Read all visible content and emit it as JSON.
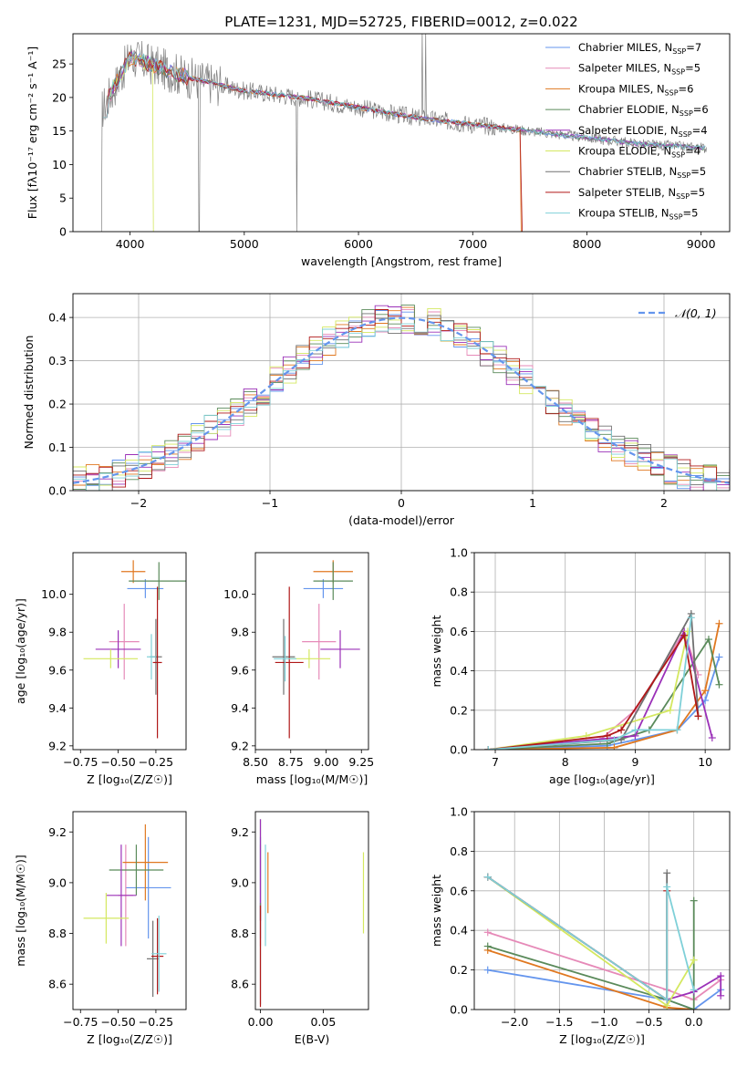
{
  "title": "PLATE=1231, MJD=52725, FIBERID=0012, z=0.022",
  "colors": {
    "Chabrier MILES": "#6495ed",
    "Salpeter MILES": "#e68ab8",
    "Kroupa MILES": "#e07820",
    "Chabrier ELODIE": "#5a8a5a",
    "Salpeter ELODIE": "#9b30b8",
    "Kroupa ELODIE": "#d4e860",
    "Chabrier STELIB": "#707070",
    "Salpeter STELIB": "#b01818",
    "Kroupa STELIB": "#7fd0d8",
    "normal": "#6495ed",
    "grid": "#b0b0b0"
  },
  "chart_data": [
    {
      "id": "spectrum",
      "type": "line",
      "xlabel": "wavelength [Angstrom, rest frame]",
      "ylabel": "Flux [fλ10⁻¹⁷ erg cm⁻² s⁻¹ A⁻¹]",
      "xlim": [
        3500,
        9250
      ],
      "ylim": [
        0,
        29.5
      ],
      "xticks": [
        "4000",
        "5000",
        "6000",
        "7000",
        "8000",
        "9000"
      ],
      "yticks": [
        "0",
        "5",
        "10",
        "15",
        "20",
        "25"
      ],
      "legend_position": "upper-right",
      "legend": [
        {
          "name": "Chabrier MILES",
          "nssp": "7"
        },
        {
          "name": "Salpeter MILES",
          "nssp": "5"
        },
        {
          "name": "Kroupa MILES",
          "nssp": "6"
        },
        {
          "name": "Chabrier ELODIE",
          "nssp": "6"
        },
        {
          "name": "Salpeter ELODIE",
          "nssp": "4"
        },
        {
          "name": "Kroupa ELODIE",
          "nssp": "4"
        },
        {
          "name": "Chabrier STELIB",
          "nssp": "5"
        },
        {
          "name": "Salpeter STELIB",
          "nssp": "5"
        },
        {
          "name": "Kroupa STELIB",
          "nssp": "5"
        }
      ],
      "data_trend": {
        "x": [
          3750,
          4000,
          4500,
          5000,
          5500,
          6000,
          6500,
          7000,
          7500,
          8000,
          8500,
          9000
        ],
        "y": [
          18,
          26,
          23,
          21,
          20,
          18.5,
          17,
          16,
          15,
          14,
          13,
          12.5
        ]
      }
    },
    {
      "id": "residuals",
      "type": "line",
      "xlabel": "(data-model)/error",
      "ylabel": "Normed distribution",
      "xlim": [
        -2.5,
        2.5
      ],
      "ylim": [
        0,
        0.455
      ],
      "xticks": [
        "−2",
        "−1",
        "0",
        "1",
        "2"
      ],
      "yticks": [
        "0.0",
        "0.1",
        "0.2",
        "0.3",
        "0.4"
      ],
      "grid": true,
      "legend_position": "upper-right",
      "legend": "𝒩(0, 1)",
      "series": [
        {
          "name": "𝒩(0, 1)",
          "mean": 0,
          "sigma": 1
        }
      ]
    },
    {
      "id": "age_vs_Z",
      "type": "scatter",
      "xlabel": "Z [log₁₀(Z/Z☉)]",
      "ylabel": "age  [log₁₀(age/yr)]",
      "xlim": [
        -0.8,
        -0.05
      ],
      "ylim": [
        9.18,
        10.22
      ],
      "xticks": [
        "−0.75",
        "−0.50",
        "−0.25"
      ],
      "yticks": [
        "9.2",
        "9.4",
        "9.6",
        "9.8",
        "10.0"
      ],
      "points": [
        {
          "series": "Chabrier MILES",
          "x": -0.32,
          "y": 10.03
        },
        {
          "series": "Salpeter MILES",
          "x": -0.46,
          "y": 9.75
        },
        {
          "series": "Kroupa MILES",
          "x": -0.4,
          "y": 10.12
        },
        {
          "series": "Chabrier ELODIE",
          "x": -0.23,
          "y": 10.07
        },
        {
          "series": "Salpeter ELODIE",
          "x": -0.5,
          "y": 9.71
        },
        {
          "series": "Kroupa ELODIE",
          "x": -0.55,
          "y": 9.66
        },
        {
          "series": "Chabrier STELIB",
          "x": -0.25,
          "y": 9.67
        },
        {
          "series": "Salpeter STELIB",
          "x": -0.24,
          "y": 9.64
        },
        {
          "series": "Kroupa STELIB",
          "x": -0.28,
          "y": 9.67
        }
      ]
    },
    {
      "id": "age_vs_mass",
      "type": "scatter",
      "xlabel": "mass [log₁₀(M/M☉)]",
      "xlim": [
        8.5,
        9.3
      ],
      "ylim": [
        9.18,
        10.22
      ],
      "xticks": [
        "8.50",
        "8.75",
        "9.00",
        "9.25"
      ],
      "yticks": [
        "9.2",
        "9.4",
        "9.6",
        "9.8",
        "10.0"
      ],
      "points": [
        {
          "series": "Chabrier MILES",
          "x": 8.98,
          "y": 10.03
        },
        {
          "series": "Salpeter MILES",
          "x": 8.95,
          "y": 9.75
        },
        {
          "series": "Kroupa MILES",
          "x": 9.05,
          "y": 10.12
        },
        {
          "series": "Chabrier ELODIE",
          "x": 9.05,
          "y": 10.07
        },
        {
          "series": "Salpeter ELODIE",
          "x": 9.1,
          "y": 9.71
        },
        {
          "series": "Kroupa ELODIE",
          "x": 8.88,
          "y": 9.66
        },
        {
          "series": "Chabrier STELIB",
          "x": 8.7,
          "y": 9.67
        },
        {
          "series": "Salpeter STELIB",
          "x": 8.74,
          "y": 9.64
        },
        {
          "series": "Kroupa STELIB",
          "x": 8.71,
          "y": 9.66
        }
      ]
    },
    {
      "id": "weight_vs_age",
      "type": "line",
      "xlabel": "age  [log₁₀(age/yr)]",
      "ylabel": "mass weight",
      "xlim": [
        6.7,
        10.35
      ],
      "ylim": [
        0,
        1.0
      ],
      "xticks": [
        "7",
        "8",
        "9",
        "10"
      ],
      "yticks": [
        "0.0",
        "0.2",
        "0.4",
        "0.6",
        "0.8",
        "1.0"
      ],
      "grid": true,
      "series": [
        {
          "name": "Chabrier MILES",
          "x": [
            6.9,
            8.6,
            9.0,
            9.6,
            10.0,
            10.2
          ],
          "y": [
            0.0,
            0.02,
            0.05,
            0.1,
            0.25,
            0.47
          ]
        },
        {
          "name": "Salpeter MILES",
          "x": [
            6.9,
            8.5,
            9.0,
            9.7,
            9.9
          ],
          "y": [
            0.0,
            0.05,
            0.2,
            0.6,
            0.38
          ]
        },
        {
          "name": "Kroupa MILES",
          "x": [
            6.9,
            8.7,
            9.6,
            10.0,
            10.2
          ],
          "y": [
            0.0,
            0.01,
            0.1,
            0.3,
            0.64
          ]
        },
        {
          "name": "Chabrier ELODIE",
          "x": [
            6.9,
            8.6,
            9.2,
            10.05,
            10.2
          ],
          "y": [
            0.0,
            0.03,
            0.1,
            0.56,
            0.33
          ]
        },
        {
          "name": "Salpeter ELODIE",
          "x": [
            6.9,
            9.0,
            9.7,
            10.1
          ],
          "y": [
            0.0,
            0.07,
            0.6,
            0.06
          ]
        },
        {
          "name": "Kroupa ELODIE",
          "x": [
            6.9,
            8.3,
            9.5,
            9.75
          ],
          "y": [
            0.0,
            0.07,
            0.2,
            0.6
          ]
        },
        {
          "name": "Chabrier STELIB",
          "x": [
            6.9,
            8.8,
            9.8,
            9.9
          ],
          "y": [
            0.0,
            0.05,
            0.69,
            0.17
          ]
        },
        {
          "name": "Salpeter STELIB",
          "x": [
            6.9,
            8.6,
            8.8,
            9.7,
            9.9
          ],
          "y": [
            0.0,
            0.07,
            0.1,
            0.58,
            0.17
          ]
        },
        {
          "name": "Kroupa STELIB",
          "x": [
            6.9,
            8.7,
            9.0,
            9.6,
            9.8
          ],
          "y": [
            0.0,
            0.05,
            0.1,
            0.1,
            0.67
          ]
        }
      ]
    },
    {
      "id": "mass_vs_Z",
      "type": "scatter",
      "xlabel": "Z [log₁₀(Z/Z☉)]",
      "ylabel": "mass [log₁₀(M/M☉)]",
      "xlim": [
        -0.8,
        -0.05
      ],
      "ylim": [
        8.5,
        9.28
      ],
      "xticks": [
        "−0.75",
        "−0.50",
        "−0.25"
      ],
      "yticks": [
        "8.6",
        "8.8",
        "9.0",
        "9.2"
      ],
      "points": [
        {
          "series": "Chabrier MILES",
          "x": -0.3,
          "y": 8.98
        },
        {
          "series": "Salpeter MILES",
          "x": -0.45,
          "y": 8.95
        },
        {
          "series": "Kroupa MILES",
          "x": -0.32,
          "y": 9.08
        },
        {
          "series": "Chabrier ELODIE",
          "x": -0.38,
          "y": 9.05
        },
        {
          "series": "Salpeter ELODIE",
          "x": -0.48,
          "y": 8.95
        },
        {
          "series": "Kroupa ELODIE",
          "x": -0.58,
          "y": 8.86
        },
        {
          "series": "Chabrier STELIB",
          "x": -0.27,
          "y": 8.7
        },
        {
          "series": "Salpeter STELIB",
          "x": -0.24,
          "y": 8.71
        },
        {
          "series": "Kroupa STELIB",
          "x": -0.23,
          "y": 8.72
        }
      ]
    },
    {
      "id": "mass_vs_ebv",
      "type": "scatter",
      "xlabel": "E(B-V)",
      "xlim": [
        -0.004,
        0.086
      ],
      "ylim": [
        8.5,
        9.28
      ],
      "xticks": [
        "0.00",
        "0.05"
      ],
      "yticks": [
        "8.6",
        "8.8",
        "9.0",
        "9.2"
      ],
      "points": [
        {
          "series": "Chabrier MILES",
          "x": 0.0,
          "y": 8.98
        },
        {
          "series": "Salpeter MILES",
          "x": 0.0,
          "y": 8.95
        },
        {
          "series": "Kroupa MILES",
          "x": 0.006,
          "y": 9.0
        },
        {
          "series": "Chabrier ELODIE",
          "x": 0.0,
          "y": 9.05
        },
        {
          "series": "Salpeter ELODIE",
          "x": 0.0,
          "y": 9.05
        },
        {
          "series": "Kroupa ELODIE",
          "x": 0.082,
          "y": 8.96
        },
        {
          "series": "Chabrier STELIB",
          "x": 0.0,
          "y": 8.72
        },
        {
          "series": "Salpeter STELIB",
          "x": 0.0,
          "y": 8.71
        },
        {
          "series": "Kroupa STELIB",
          "x": 0.004,
          "y": 8.95
        }
      ]
    },
    {
      "id": "weight_vs_Z",
      "type": "line",
      "xlabel": "Z [log₁₀(Z/Z☉)]",
      "ylabel": "mass weight",
      "xlim": [
        -2.45,
        0.4
      ],
      "ylim": [
        0,
        1.0
      ],
      "xticks": [
        "−2.0",
        "−1.5",
        "−1.0",
        "−0.5",
        "0.0"
      ],
      "yticks": [
        "0.0",
        "0.2",
        "0.4",
        "0.6",
        "0.8",
        "1.0"
      ],
      "grid": true,
      "series": [
        {
          "name": "Chabrier MILES",
          "x": [
            -2.3,
            -0.3,
            0.0,
            0.3
          ],
          "y": [
            0.2,
            0.05,
            0.0,
            0.1
          ]
        },
        {
          "name": "Salpeter MILES",
          "x": [
            -2.3,
            -0.3,
            0.0,
            0.3
          ],
          "y": [
            0.39,
            0.1,
            0.05,
            0.15
          ]
        },
        {
          "name": "Kroupa MILES",
          "x": [
            -2.3,
            -0.3,
            0.0
          ],
          "y": [
            0.3,
            0.01,
            0.0
          ]
        },
        {
          "name": "Chabrier ELODIE",
          "x": [
            -2.3,
            -0.3,
            0.0,
            0.0
          ],
          "y": [
            0.32,
            0.05,
            0.0,
            0.55
          ]
        },
        {
          "name": "Salpeter ELODIE",
          "x": [
            -2.3,
            -0.3,
            0.0,
            0.3,
            0.3
          ],
          "y": [
            0.67,
            0.05,
            0.09,
            0.17,
            0.07
          ]
        },
        {
          "name": "Kroupa ELODIE",
          "x": [
            -2.3,
            -0.3,
            0.0
          ],
          "y": [
            0.67,
            0.02,
            0.25
          ]
        },
        {
          "name": "Chabrier STELIB",
          "x": [
            -2.3,
            -0.3,
            -0.3
          ],
          "y": [
            0.67,
            0.05,
            0.69
          ]
        },
        {
          "name": "Salpeter STELIB",
          "x": [
            -2.3,
            -0.3,
            -0.3
          ],
          "y": [
            0.67,
            0.05,
            0.6
          ]
        },
        {
          "name": "Kroupa STELIB",
          "x": [
            -2.3,
            -0.3,
            -0.3,
            0.0
          ],
          "y": [
            0.67,
            0.05,
            0.62,
            0.1
          ]
        }
      ]
    }
  ]
}
